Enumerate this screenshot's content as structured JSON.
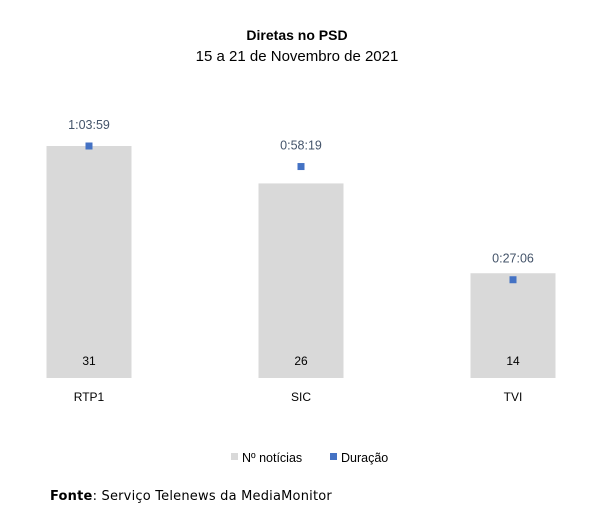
{
  "chart_data": {
    "type": "bar",
    "title": "Diretas no PSD",
    "subtitle": "15 a 21 de Novembro de 2021",
    "categories": [
      "RTP1",
      "SIC",
      "TVI"
    ],
    "series": [
      {
        "name": "Nº notícias",
        "values": [
          31,
          26,
          14
        ],
        "color": "#d9d9d9",
        "kind": "bar"
      },
      {
        "name": "Duração",
        "values": [
          "1:03:59",
          "0:58:19",
          "0:27:06"
        ],
        "seconds": [
          3839,
          3499,
          1626
        ],
        "color": "#4472c4",
        "kind": "marker"
      }
    ],
    "legend": {
      "position": "bottom"
    },
    "grid": false
  },
  "source": {
    "label": "Fonte",
    "text": ": Serviço Telenews da MediaMonitor"
  }
}
